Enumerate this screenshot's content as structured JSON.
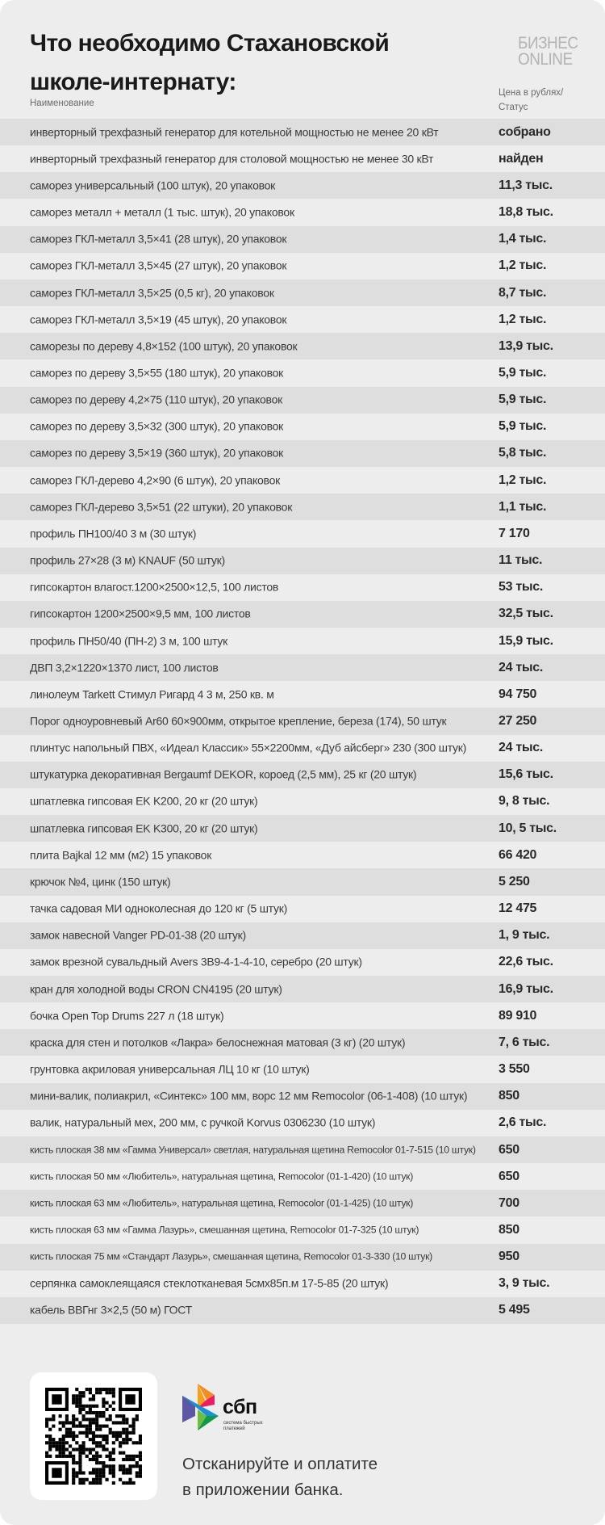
{
  "header": {
    "title_line1": "Что необходимо Стахановской",
    "title_line2": "школе-интернату:",
    "logo_line1": "БИЗНЕС",
    "logo_line2": "ONLINE"
  },
  "table": {
    "col_name": "Наименование",
    "col_price_line1": "Цена в рублях/",
    "col_price_line2": "Статус",
    "rows": [
      {
        "name": "инверторный трехфазный генератор для котельной мощностью не менее 20 кВт",
        "price": "собрано"
      },
      {
        "name": "инверторный трехфазный генератор для столовой мощностью не менее 30 кВт",
        "price": "найден"
      },
      {
        "name": "саморез универсальный (100 штук), 20 упаковок",
        "price": "11,3 тыс."
      },
      {
        "name": "саморез металл + металл (1 тыс. штук), 20 упаковок",
        "price": "18,8 тыс."
      },
      {
        "name": "саморез ГКЛ-металл 3,5×41 (28 штук), 20 упаковок",
        "price": "1,4 тыс."
      },
      {
        "name": "саморез ГКЛ-металл 3,5×45 (27 штук), 20 упаковок",
        "price": "1,2 тыс."
      },
      {
        "name": "саморез ГКЛ-металл 3,5×25 (0,5 кг), 20 упаковок",
        "price": "8,7 тыс."
      },
      {
        "name": "саморез ГКЛ-металл 3,5×19 (45 штук), 20 упаковок",
        "price": "1,2 тыс."
      },
      {
        "name": "саморезы по дереву 4,8×152 (100 штук), 20 упаковок",
        "price": "13,9 тыс."
      },
      {
        "name": "саморез по дереву 3,5×55 (180 штук), 20 упаковок",
        "price": "5,9 тыс."
      },
      {
        "name": "саморез по дереву 4,2×75 (110 штук), 20 упаковок",
        "price": "5,9 тыс."
      },
      {
        "name": "саморез по дереву 3,5×32 (300 штук), 20 упаковок",
        "price": "5,9 тыс."
      },
      {
        "name": "саморез по дереву 3,5×19 (360 штук), 20 упаковок",
        "price": "5,8 тыс."
      },
      {
        "name": "саморез ГКЛ-дерево 4,2×90 (6 штук), 20 упаковок",
        "price": "1,2 тыс."
      },
      {
        "name": "саморез ГКЛ-дерево 3,5×51 (22 штуки), 20 упаковок",
        "price": "1,1 тыс."
      },
      {
        "name": "профиль ПН100/40 3 м (30 штук)",
        "price": "7 170"
      },
      {
        "name": "профиль 27×28 (3 м) KNAUF (50 штук)",
        "price": "11 тыс."
      },
      {
        "name": "гипсокартон влагост.1200×2500×12,5, 100 листов",
        "price": "53 тыс."
      },
      {
        "name": "гипсокартон 1200×2500×9,5 мм, 100 листов",
        "price": "32,5 тыс."
      },
      {
        "name": "профиль ПН50/40 (ПН-2) 3 м, 100 штук",
        "price": "15,9 тыс."
      },
      {
        "name": "ДВП 3,2×1220×1370 лист, 100 листов",
        "price": "24 тыс."
      },
      {
        "name": "линолеум Tarkett Стимул Ригард 4 3 м, 250 кв. м",
        "price": "94 750"
      },
      {
        "name": "Порог одноуровневый Ar60 60×900мм, открытое крепление, береза (174), 50 штук",
        "price": "27 250"
      },
      {
        "name": "плинтус напольный ПВХ, «Идеал Классик» 55×2200мм, «Дуб айсберг» 230 (300 штук)",
        "price": "24 тыс."
      },
      {
        "name": "штукатурка декоративная Bergaumf DEKOR, короед (2,5 мм), 25 кг (20 штук)",
        "price": "15,6 тыс."
      },
      {
        "name": "шпатлевка гипсовая EK K200, 20 кг (20 штук)",
        "price": "9, 8 тыс."
      },
      {
        "name": "шпатлевка гипсовая EK K300, 20 кг (20 штук)",
        "price": "10, 5 тыс."
      },
      {
        "name": "плита Bajkal 12 мм (м2) 15 упаковок",
        "price": "66 420"
      },
      {
        "name": "крючок №4, цинк (150 штук)",
        "price": "5 250"
      },
      {
        "name": "тачка садовая МИ одноколесная до 120 кг (5 штук)",
        "price": "12 475"
      },
      {
        "name": "замок навесной Vanger PD-01-38 (20 штук)",
        "price": "1, 9 тыс."
      },
      {
        "name": "замок врезной сувальдный Avers 3В9-4-1-4-10, серебро (20 штук)",
        "price": "22,6 тыс."
      },
      {
        "name": "кран для холодной воды CRON CN4195 (20 штук)",
        "price": "16,9 тыс."
      },
      {
        "name": "бочка Open Top Drums 227 л (18 штук)",
        "price": "89 910"
      },
      {
        "name": "краска для стен и потолков «Лакра» белоснежная матовая (3 кг) (20 штук)",
        "price": "7, 6 тыс."
      },
      {
        "name": "грунтовка акриловая универсальная ЛЦ 10 кг (10 штук)",
        "price": "3 550"
      },
      {
        "name": "мини-валик, полиакрил, «Синтекс» 100 мм, ворс 12 мм Remocolor (06-1-408) (10 штук)",
        "price": "850"
      },
      {
        "name": "валик, натуральный мех, 200 мм, с ручкой Korvus 0306230 (10 штук)",
        "price": "2,6 тыс."
      },
      {
        "name": "кисть плоская 38 мм «Гамма Универсал» светлая, натуральная щетина Remocolor 01-7-515 (10 штук)",
        "price": "650",
        "small": true
      },
      {
        "name": "кисть плоская 50 мм «Любитель», натуральная щетина, Remocolor (01-1-420) (10 штук)",
        "price": "650",
        "small": true
      },
      {
        "name": "кисть плоская 63 мм «Любитель», натуральная щетина, Remocolor (01-1-425) (10 штук)",
        "price": "700",
        "small": true
      },
      {
        "name": "кисть плоская 63 мм «Гамма Лазурь», смешанная щетина, Remocolor 01-7-325 (10 штук)",
        "price": "850",
        "small": true
      },
      {
        "name": "кисть плоская 75 мм «Стандарт Лазурь», смешанная щетина, Remocolor 01-3-330 (10 штук)",
        "price": "950",
        "small": true
      },
      {
        "name": "серпянка самоклеящаяся стеклотканевая 5смх85п.м 17-5-85 (20 штук)",
        "price": "3, 9 тыс."
      },
      {
        "name": "кабель ВВГнг 3×2,5 (50 м) ГОСТ",
        "price": "5 495"
      }
    ]
  },
  "footer": {
    "sbp_name": "сбп",
    "sbp_sub": "система быстрых платежей",
    "scan_line1": "Отсканируйте и оплатите",
    "scan_line2": "в приложении банка.",
    "icons": [
      "qr-code-icon",
      "sbp-logo-icon"
    ]
  }
}
